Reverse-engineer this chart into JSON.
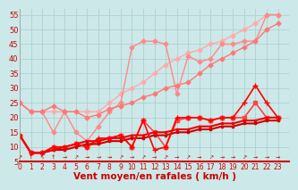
{
  "title": "",
  "xlabel": "Vent moyen/en rafales ( km/h )",
  "ylabel": "",
  "bg_color": "#cce8e8",
  "grid_color": "#aacccc",
  "x": [
    0,
    1,
    2,
    3,
    4,
    5,
    6,
    7,
    8,
    9,
    10,
    11,
    12,
    13,
    14,
    15,
    16,
    17,
    18,
    19,
    20,
    21,
    22,
    23
  ],
  "series": [
    {
      "comment": "lightest pink - top line, very smooth upward, starts ~25",
      "color": "#ffaaaa",
      "alpha": 1.0,
      "lw": 1.0,
      "marker": "D",
      "ms": 2.5,
      "y": [
        25,
        22,
        22,
        22,
        22,
        22,
        22,
        22,
        25,
        28,
        30,
        32,
        35,
        38,
        40,
        42,
        43,
        45,
        46,
        48,
        50,
        52,
        55,
        55
      ]
    },
    {
      "comment": "medium pink - wavy line with peak around x=10-12",
      "color": "#ff8888",
      "alpha": 1.0,
      "lw": 1.0,
      "marker": "D",
      "ms": 2.5,
      "y": [
        25,
        22,
        22,
        15,
        22,
        15,
        12,
        17,
        22,
        25,
        44,
        46,
        46,
        45,
        28,
        41,
        39,
        40,
        45,
        45,
        46,
        46,
        55,
        55
      ]
    },
    {
      "comment": "slightly darker pink - middle line",
      "color": "#ff7777",
      "alpha": 1.0,
      "lw": 1.0,
      "marker": "D",
      "ms": 2.5,
      "y": [
        25,
        22,
        22,
        24,
        22,
        22,
        20,
        21,
        23,
        24,
        25,
        27,
        28,
        30,
        31,
        32,
        35,
        38,
        40,
        42,
        44,
        46,
        50,
        52
      ]
    },
    {
      "comment": "medium red - slightly volatile",
      "color": "#ff4444",
      "alpha": 1.0,
      "lw": 1.2,
      "marker": "s",
      "ms": 2.5,
      "y": [
        14,
        8,
        8,
        10,
        10,
        11,
        10,
        12,
        13,
        14,
        10,
        19,
        15,
        10,
        19,
        20,
        20,
        19,
        20,
        20,
        20,
        25,
        20,
        20
      ]
    },
    {
      "comment": "dark red smooth - linear-ish trend",
      "color": "#cc0000",
      "alpha": 1.0,
      "lw": 1.5,
      "marker": "s",
      "ms": 2.0,
      "y": [
        14,
        8,
        8,
        9,
        9,
        10,
        11,
        11,
        12,
        12,
        13,
        13,
        14,
        14,
        15,
        15,
        16,
        16,
        17,
        17,
        18,
        18,
        19,
        19
      ]
    },
    {
      "comment": "dark red smooth2 - slightly higher",
      "color": "#ee0000",
      "alpha": 1.0,
      "lw": 1.5,
      "marker": "s",
      "ms": 2.0,
      "y": [
        14,
        8,
        8,
        9,
        10,
        11,
        12,
        12,
        13,
        13,
        14,
        14,
        15,
        15,
        16,
        16,
        17,
        17,
        18,
        18,
        19,
        19,
        20,
        20
      ]
    },
    {
      "comment": "bright red spiky - the volatile one with peak at x=21 ~30",
      "color": "#ff0000",
      "alpha": 1.0,
      "lw": 1.2,
      "marker": "+",
      "ms": 4,
      "y": [
        14,
        8,
        8,
        10,
        10,
        11,
        10,
        13,
        13,
        14,
        10,
        19,
        9,
        10,
        20,
        20,
        20,
        19,
        20,
        20,
        25,
        31,
        25,
        20
      ]
    }
  ],
  "arrows": [
    [
      0,
      "ne"
    ],
    [
      1,
      "n"
    ],
    [
      2,
      "nw"
    ],
    [
      3,
      "n"
    ],
    [
      4,
      "e"
    ],
    [
      5,
      "ne"
    ],
    [
      6,
      "e"
    ],
    [
      7,
      "e"
    ],
    [
      8,
      "e"
    ],
    [
      9,
      "ne"
    ],
    [
      10,
      "e"
    ],
    [
      11,
      "ne"
    ],
    [
      12,
      "e"
    ],
    [
      13,
      "ne"
    ],
    [
      14,
      "e"
    ],
    [
      15,
      "ne"
    ],
    [
      16,
      "e"
    ],
    [
      17,
      "ne"
    ],
    [
      18,
      "e"
    ],
    [
      19,
      "e"
    ],
    [
      20,
      "ne"
    ],
    [
      21,
      "e"
    ],
    [
      22,
      "e"
    ],
    [
      23,
      "e"
    ]
  ],
  "xlim": [
    0,
    24
  ],
  "ylim": [
    5,
    57
  ],
  "yticks": [
    5,
    10,
    15,
    20,
    25,
    30,
    35,
    40,
    45,
    50,
    55
  ],
  "xticks": [
    0,
    1,
    2,
    3,
    4,
    5,
    6,
    7,
    8,
    9,
    10,
    11,
    12,
    13,
    14,
    15,
    16,
    17,
    18,
    19,
    20,
    21,
    22,
    23
  ],
  "tick_color": "#cc0000",
  "xlabel_color": "#cc0000",
  "xlabel_fontsize": 7.5
}
